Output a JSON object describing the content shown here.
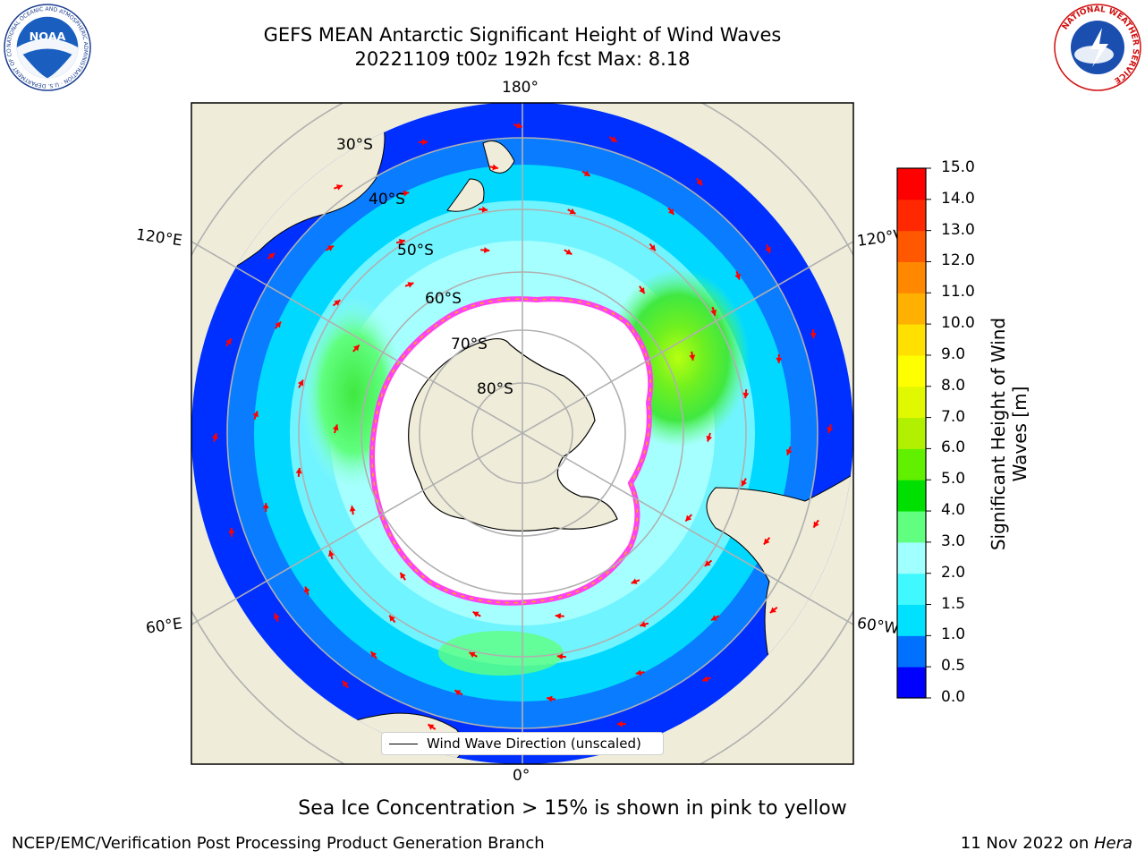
{
  "header": {
    "title_line1": "GEFS MEAN Antarctic Significant Height of Wind Waves",
    "title_line2": "20221109 t00z 192h fcst   Max: 8.18"
  },
  "logos": {
    "noaa_text": "NOAA",
    "noaa_ring_text": "NATIONAL OCEANIC AND ATMOSPHERIC ADMINISTRATION · U.S. DEPARTMENT OF COMMERCE",
    "nws_ring_text": "NATIONAL WEATHER SERVICE"
  },
  "map": {
    "projection": "south-polar-stereographic",
    "lon_labels": {
      "top": "180°",
      "bottom": "0°",
      "upper_left": "120°E",
      "upper_right": "120°W",
      "lower_left": "60°E",
      "lower_right": "60°W"
    },
    "lat_labels": [
      "30°S",
      "40°S",
      "50°S",
      "60°S",
      "70°S",
      "80°S"
    ],
    "legend_label": "Wind Wave Direction (unscaled)",
    "colors": {
      "land": "#efedd9",
      "ice_free_pole": "#ffffff",
      "arrows": "#ff0000",
      "graticule": "#b0b0b0",
      "sea_ice": "#ff44ee"
    }
  },
  "colorbar": {
    "title": "Significant Height of Wind Waves [m]",
    "ticks": [
      "0.0",
      "0.5",
      "1.0",
      "1.5",
      "2.0",
      "3.0",
      "4.0",
      "5.0",
      "6.0",
      "7.0",
      "8.0",
      "9.0",
      "10.0",
      "11.0",
      "12.0",
      "13.0",
      "14.0",
      "15.0"
    ],
    "colors": [
      "#0000ff",
      "#0070ff",
      "#00e0ff",
      "#40f8ff",
      "#a0ffff",
      "#60ff80",
      "#00e000",
      "#60f000",
      "#b0f000",
      "#e0f800",
      "#ffff00",
      "#ffe000",
      "#ffb000",
      "#ff8800",
      "#ff5800",
      "#ff2800",
      "#ff0000"
    ]
  },
  "notes": {
    "sea_ice": "Sea Ice Concentration > 15% is shown in pink to yellow",
    "footer_left": "NCEP/EMC/Verification Post Processing Product Generation Branch",
    "footer_right_prefix": "11 Nov 2022 on ",
    "footer_right_machine": "Hera"
  }
}
